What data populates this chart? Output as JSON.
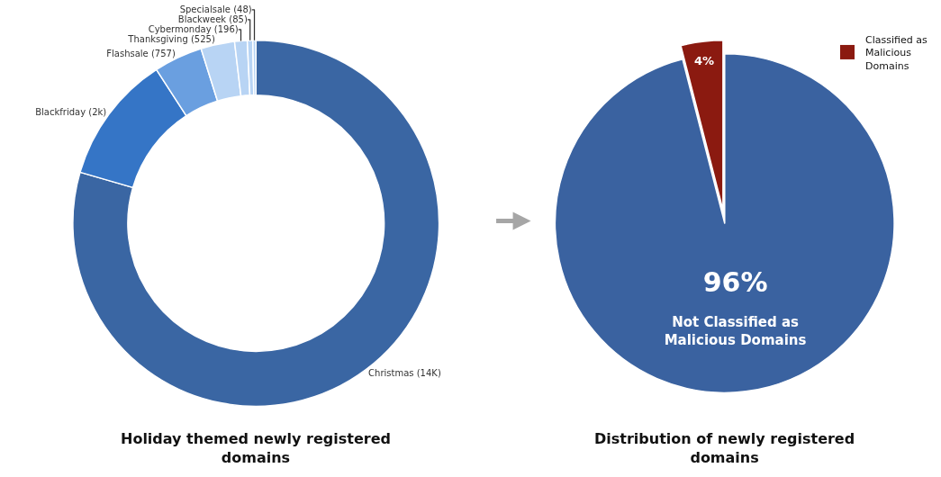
{
  "chart_data": [
    {
      "type": "donut",
      "title": "Holiday themed newly registered domains",
      "categories": [
        "Christmas (14K)",
        "Blackfriday (2k)",
        "Flashsale (757)",
        "Thanksgiving (525)",
        "Cybermonday (196)",
        "Blackweek (85)",
        "Specialsale (48)"
      ],
      "values": [
        14000,
        2000,
        757,
        525,
        196,
        85,
        48
      ],
      "colors": [
        "#3a66a3",
        "#3575c6",
        "#6a9fe0",
        "#b8d4f4",
        "#b8d4f4",
        "#b8d4f4",
        "#b8d4f4"
      ],
      "legend": false
    },
    {
      "type": "pie",
      "title": "Distribution of newly registered domains",
      "categories": [
        "Not Classified as Malicious Domains",
        "Classified as Malicious Domains"
      ],
      "values": [
        96,
        4
      ],
      "value_labels": [
        "96%",
        "4%"
      ],
      "colors": [
        "#3a62a0",
        "#8b1a10"
      ],
      "legend": "top right"
    }
  ]
}
